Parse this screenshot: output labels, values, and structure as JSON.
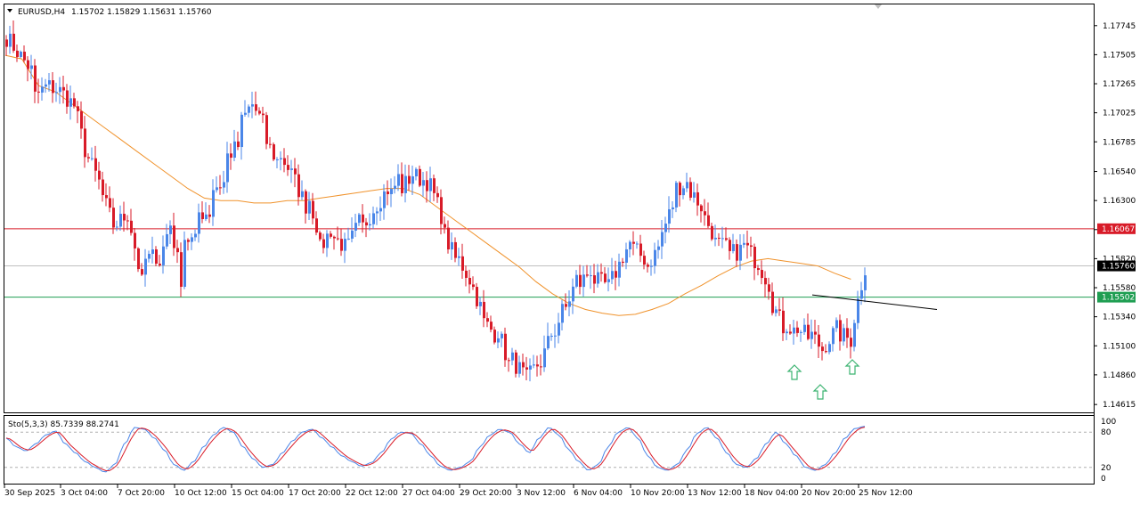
{
  "header": {
    "symbol": "EURUSD,H4",
    "ohlc": "1.15702 1.15829 1.15631 1.15760"
  },
  "indicator": {
    "label": "Sto(5,3,3) 85.7339 88.2741",
    "levels": [
      "100",
      "80",
      "20",
      "0"
    ],
    "main_color": "#4a86e8",
    "signal_color": "#d81b28"
  },
  "price_axis": {
    "ticks": [
      "1.17745",
      "1.17505",
      "1.17265",
      "1.17025",
      "1.16785",
      "1.16540",
      "1.16300",
      "1.16060",
      "1.15820",
      "1.15580",
      "1.15340",
      "1.15100",
      "1.14860",
      "1.14615"
    ]
  },
  "time_axis": {
    "labels": [
      "30 Sep 2025",
      "3 Oct 04:00",
      "7 Oct 20:00",
      "10 Oct 12:00",
      "15 Oct 04:00",
      "17 Oct 20:00",
      "22 Oct 12:00",
      "27 Oct 04:00",
      "29 Oct 20:00",
      "3 Nov 12:00",
      "6 Nov 04:00",
      "10 Nov 20:00",
      "13 Nov 12:00",
      "18 Nov 04:00",
      "20 Nov 20:00",
      "25 Nov 12:00"
    ]
  },
  "levels": {
    "resistance": {
      "price": "1.16067",
      "value": 1.16067,
      "color": "#d81b28"
    },
    "current": {
      "price": "1.15760",
      "value": 1.1576,
      "color": "#000000"
    },
    "support": {
      "price": "1.15502",
      "value": 1.15502,
      "color": "#1f9e52"
    }
  },
  "colors": {
    "bull": "#4a86e8",
    "bear": "#d81b28",
    "ma": "#f0922b",
    "arrow": "#3cb371"
  },
  "chart_data": {
    "type": "candlestick",
    "ylim": [
      1.1455,
      1.1792
    ],
    "grid": false,
    "anchors": [
      [
        1.1755,
        1.1765
      ],
      [
        1.175,
        1.175
      ],
      [
        1.1735,
        1.1715
      ],
      [
        1.1725,
        1.1725
      ],
      [
        1.172,
        1.172
      ],
      [
        1.1708,
        1.1708
      ],
      [
        1.166,
        1.1665
      ],
      [
        1.164,
        1.1635
      ],
      [
        1.1605,
        1.161
      ],
      [
        1.162,
        1.1615
      ],
      [
        1.1558,
        1.158
      ],
      [
        1.1585,
        1.157
      ],
      [
        1.1612,
        1.1612
      ],
      [
        1.1555,
        1.16
      ],
      [
        1.1595,
        1.162
      ],
      [
        1.162,
        1.164
      ],
      [
        1.1645,
        1.1665
      ],
      [
        1.1675,
        1.169
      ],
      [
        1.171,
        1.171
      ],
      [
        1.169,
        1.168
      ],
      [
        1.166,
        1.167
      ],
      [
        1.165,
        1.165
      ],
      [
        1.1625,
        1.164
      ],
      [
        1.16,
        1.159
      ],
      [
        1.161,
        1.16
      ],
      [
        1.159,
        1.159
      ],
      [
        1.1615,
        1.1605
      ],
      [
        1.1625,
        1.1625
      ],
      [
        1.164,
        1.163
      ],
      [
        1.1655,
        1.164
      ],
      [
        1.1655,
        1.165
      ],
      [
        1.1645,
        1.1645
      ],
      [
        1.1615,
        1.1605
      ],
      [
        1.158,
        1.1585
      ],
      [
        1.1565,
        1.1565
      ],
      [
        1.1535,
        1.153
      ],
      [
        1.1518,
        1.1525
      ],
      [
        1.149,
        1.15
      ],
      [
        1.1485,
        1.148
      ],
      [
        1.1495,
        1.149
      ],
      [
        1.152,
        1.1515
      ],
      [
        1.1545,
        1.154
      ],
      [
        1.157,
        1.156
      ],
      [
        1.1575,
        1.1565
      ],
      [
        1.156,
        1.1555
      ],
      [
        1.1578,
        1.158
      ],
      [
        1.16,
        1.159
      ],
      [
        1.158,
        1.1575
      ],
      [
        1.1595,
        1.16
      ],
      [
        1.163,
        1.164
      ],
      [
        1.1645,
        1.164
      ],
      [
        1.1625,
        1.162
      ],
      [
        1.16,
        1.1595
      ],
      [
        1.159,
        1.1585
      ],
      [
        1.159,
        1.1595
      ],
      [
        1.158,
        1.1582
      ],
      [
        1.156,
        1.155
      ],
      [
        1.1525,
        1.153
      ],
      [
        1.152,
        1.1525
      ],
      [
        1.1515,
        1.152
      ],
      [
        1.1505,
        1.151
      ],
      [
        1.1525,
        1.152
      ],
      [
        1.1515,
        1.1522
      ],
      [
        1.1575,
        1.1576
      ]
    ],
    "ma_anchors": [
      [
        1.175,
        1.1747
      ],
      [
        1.1725,
        1.172
      ],
      [
        1.171,
        1.17
      ],
      [
        1.169,
        1.168
      ],
      [
        1.167,
        1.166
      ],
      [
        1.165,
        1.164
      ],
      [
        1.1632,
        1.163
      ],
      [
        1.163,
        1.1628
      ],
      [
        1.1628,
        1.163
      ],
      [
        1.163,
        1.1632
      ],
      [
        1.1634,
        1.1636
      ],
      [
        1.1638,
        1.164
      ],
      [
        1.164,
        1.1635
      ],
      [
        1.1625,
        1.1615
      ],
      [
        1.1605,
        1.1595
      ],
      [
        1.1585,
        1.1575
      ],
      [
        1.1563,
        1.1553
      ],
      [
        1.1545,
        1.154
      ],
      [
        1.1537,
        1.1535
      ],
      [
        1.1536,
        1.154
      ],
      [
        1.1545,
        1.1553
      ],
      [
        1.156,
        1.1568
      ],
      [
        1.1575,
        1.158
      ],
      [
        1.1582,
        1.158
      ],
      [
        1.1578,
        1.1576
      ],
      [
        1.157,
        1.1565
      ]
    ],
    "stochastic": {
      "ylim": [
        0,
        100
      ],
      "anchors": [
        70,
        55,
        48,
        60,
        75,
        82,
        60,
        45,
        30,
        20,
        12,
        25,
        60,
        88,
        85,
        70,
        50,
        25,
        15,
        30,
        55,
        75,
        88,
        80,
        55,
        35,
        20,
        25,
        45,
        65,
        80,
        85,
        70,
        55,
        40,
        30,
        22,
        28,
        45,
        68,
        80,
        78,
        60,
        40,
        22,
        15,
        20,
        30,
        55,
        75,
        85,
        80,
        60,
        45,
        70,
        88,
        75,
        50,
        30,
        15,
        25,
        55,
        80,
        88,
        70,
        40,
        20,
        15,
        25,
        50,
        78,
        88,
        70,
        45,
        25,
        20,
        35,
        60,
        80,
        60,
        40,
        20,
        15,
        25,
        45,
        70,
        86,
        90
      ]
    }
  }
}
